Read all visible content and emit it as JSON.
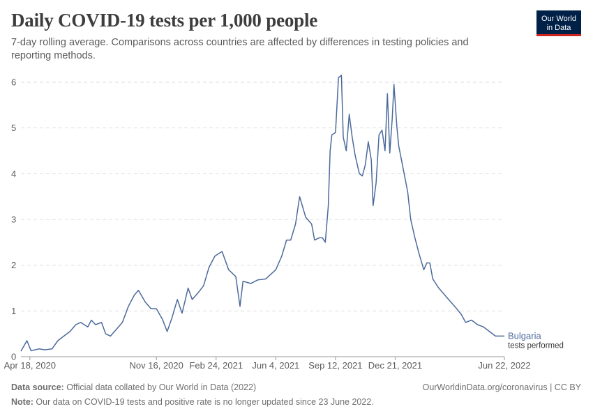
{
  "header": {
    "title": "Daily COVID-19 tests per 1,000 people",
    "subtitle": "7-day rolling average. Comparisons across countries are affected by differences in testing policies and reporting methods."
  },
  "logo": {
    "line1": "Our World",
    "line2": "in Data"
  },
  "footer": {
    "source_label": "Data source:",
    "source_text": " Official data collated by Our World in Data (2022)",
    "link": "OurWorldinData.org/coronavirus | CC BY",
    "note_label": "Note:",
    "note_text": " Our data on COVID-19 tests and positive rate is no longer updated since 23 June 2022."
  },
  "colors": {
    "series": "#4c6a9c",
    "grid": "#dddddd",
    "axis": "#999999"
  },
  "chart_data": {
    "type": "line",
    "title": "Daily COVID-19 tests per 1,000 people",
    "xlabel": "",
    "ylabel": "",
    "ylim": [
      0,
      6
    ],
    "yticks": [
      0,
      1,
      2,
      3,
      4,
      5,
      6
    ],
    "x_range": [
      "2020-04-03",
      "2022-06-22"
    ],
    "x_tick_labels": [
      "Apr 18, 2020",
      "Nov 16, 2020",
      "Feb 24, 2021",
      "Jun 4, 2021",
      "Sep 12, 2021",
      "Dec 21, 2021",
      "Jun 22, 2022"
    ],
    "x_tick_days": [
      15,
      227,
      327,
      427,
      527,
      627,
      810
    ],
    "grid": true,
    "series": [
      {
        "name": "Bulgaria",
        "legend_sublabel": "tests performed",
        "points": [
          [
            0,
            0.12
          ],
          [
            10,
            0.35
          ],
          [
            17,
            0.13
          ],
          [
            30,
            0.17
          ],
          [
            40,
            0.15
          ],
          [
            52,
            0.17
          ],
          [
            62,
            0.35
          ],
          [
            72,
            0.45
          ],
          [
            82,
            0.55
          ],
          [
            92,
            0.7
          ],
          [
            100,
            0.75
          ],
          [
            112,
            0.65
          ],
          [
            118,
            0.8
          ],
          [
            125,
            0.7
          ],
          [
            135,
            0.75
          ],
          [
            142,
            0.5
          ],
          [
            150,
            0.45
          ],
          [
            160,
            0.6
          ],
          [
            170,
            0.75
          ],
          [
            180,
            1.1
          ],
          [
            190,
            1.35
          ],
          [
            197,
            1.45
          ],
          [
            208,
            1.2
          ],
          [
            218,
            1.05
          ],
          [
            227,
            1.05
          ],
          [
            237,
            0.82
          ],
          [
            245,
            0.55
          ],
          [
            253,
            0.85
          ],
          [
            262,
            1.25
          ],
          [
            270,
            0.95
          ],
          [
            280,
            1.5
          ],
          [
            287,
            1.25
          ],
          [
            297,
            1.4
          ],
          [
            306,
            1.55
          ],
          [
            315,
            1.95
          ],
          [
            325,
            2.2
          ],
          [
            337,
            2.3
          ],
          [
            348,
            1.9
          ],
          [
            360,
            1.75
          ],
          [
            367,
            1.1
          ],
          [
            372,
            1.65
          ],
          [
            385,
            1.6
          ],
          [
            397,
            1.68
          ],
          [
            410,
            1.7
          ],
          [
            427,
            1.9
          ],
          [
            437,
            2.2
          ],
          [
            445,
            2.55
          ],
          [
            452,
            2.55
          ],
          [
            460,
            2.9
          ],
          [
            467,
            3.5
          ],
          [
            477,
            3.05
          ],
          [
            487,
            2.9
          ],
          [
            492,
            2.55
          ],
          [
            500,
            2.6
          ],
          [
            505,
            2.6
          ],
          [
            510,
            2.5
          ],
          [
            515,
            3.3
          ],
          [
            518,
            4.5
          ],
          [
            521,
            4.85
          ],
          [
            527,
            4.9
          ],
          [
            532,
            6.1
          ],
          [
            537,
            6.15
          ],
          [
            540,
            4.8
          ],
          [
            545,
            4.5
          ],
          [
            550,
            5.3
          ],
          [
            555,
            4.8
          ],
          [
            560,
            4.4
          ],
          [
            567,
            4.0
          ],
          [
            572,
            3.95
          ],
          [
            577,
            4.2
          ],
          [
            582,
            4.7
          ],
          [
            587,
            4.3
          ],
          [
            590,
            3.3
          ],
          [
            595,
            3.8
          ],
          [
            600,
            4.85
          ],
          [
            605,
            4.95
          ],
          [
            610,
            4.5
          ],
          [
            614,
            5.75
          ],
          [
            618,
            4.45
          ],
          [
            622,
            5.2
          ],
          [
            625,
            5.95
          ],
          [
            630,
            5.0
          ],
          [
            633,
            4.6
          ],
          [
            642,
            4.0
          ],
          [
            648,
            3.6
          ],
          [
            653,
            3.0
          ],
          [
            660,
            2.6
          ],
          [
            667,
            2.25
          ],
          [
            675,
            1.9
          ],
          [
            680,
            2.05
          ],
          [
            685,
            2.05
          ],
          [
            690,
            1.7
          ],
          [
            700,
            1.5
          ],
          [
            710,
            1.35
          ],
          [
            720,
            1.2
          ],
          [
            730,
            1.05
          ],
          [
            738,
            0.92
          ],
          [
            745,
            0.75
          ],
          [
            755,
            0.8
          ],
          [
            765,
            0.7
          ],
          [
            775,
            0.65
          ],
          [
            785,
            0.55
          ],
          [
            795,
            0.45
          ],
          [
            810,
            0.45
          ]
        ]
      }
    ]
  }
}
